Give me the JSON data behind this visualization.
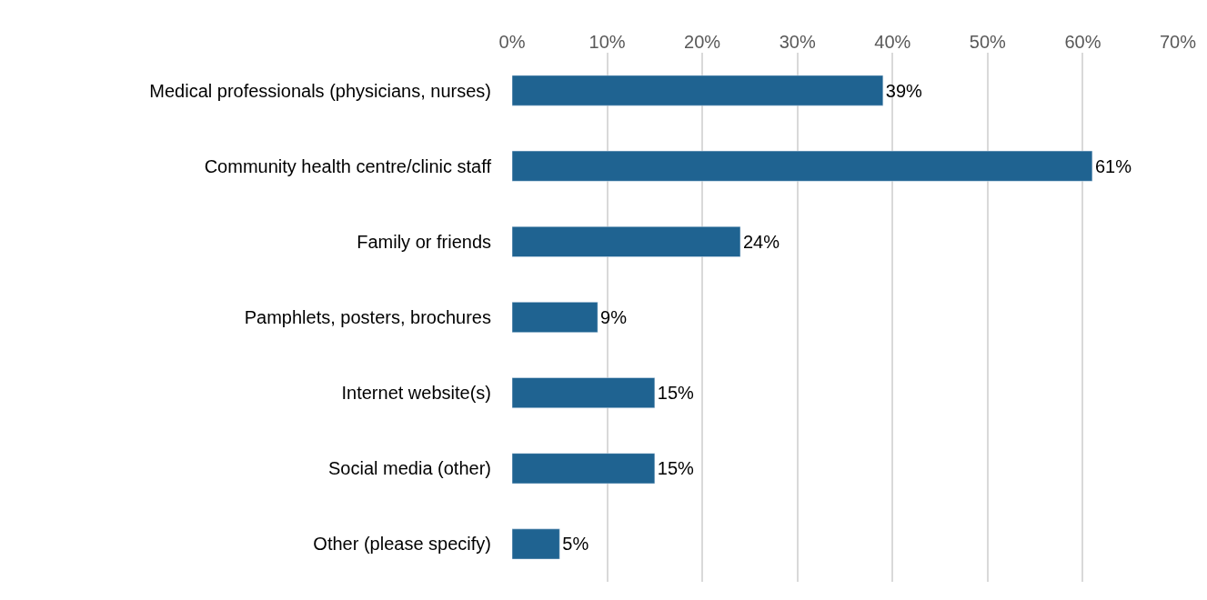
{
  "chart_data": {
    "type": "bar",
    "orientation": "horizontal",
    "categories": [
      "Medical professionals (physicians, nurses)",
      "Community health centre/clinic staff",
      "Family or friends",
      "Pamphlets, posters, brochures",
      "Internet website(s)",
      "Social media (other)",
      "Other (please specify)"
    ],
    "values": [
      39,
      61,
      24,
      9,
      15,
      15,
      5
    ],
    "value_labels": [
      "39%",
      "61%",
      "24%",
      "9%",
      "15%",
      "15%",
      "5%"
    ],
    "color": "#1f6391",
    "xlim": [
      0,
      70
    ],
    "xticks": [
      {
        "value": 0,
        "label": "0%"
      },
      {
        "value": 10,
        "label": "10%"
      },
      {
        "value": 20,
        "label": "20%"
      },
      {
        "value": 30,
        "label": "30%"
      },
      {
        "value": 40,
        "label": "40%"
      },
      {
        "value": 50,
        "label": "50%"
      },
      {
        "value": 60,
        "label": "60%"
      },
      {
        "value": 70,
        "label": "70%"
      }
    ],
    "grid": "x",
    "legend": false
  }
}
